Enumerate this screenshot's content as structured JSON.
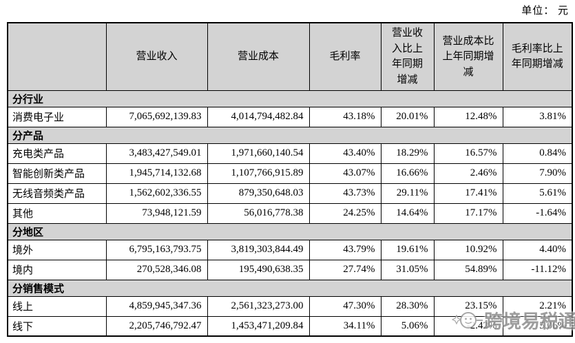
{
  "unit_label": "单位： 元",
  "table": {
    "columns": [
      "",
      "营业收入",
      "营业成本",
      "毛利率",
      "营业收入比上年同期增减",
      "营业成本比上年同期增减",
      "毛利率比上年同期增减"
    ],
    "rows": [
      {
        "type": "section",
        "label": "分行业"
      },
      {
        "type": "data",
        "label": "消费电子业",
        "revenue": "7,065,692,139.83",
        "cost": "4,014,794,482.84",
        "margin": "43.18%",
        "revenue_yoy": "20.01%",
        "cost_yoy": "12.48%",
        "margin_yoy": "3.81%"
      },
      {
        "type": "section",
        "label": "分产品"
      },
      {
        "type": "data",
        "label": "充电类产品",
        "revenue": "3,483,427,549.01",
        "cost": "1,971,660,140.54",
        "margin": "43.40%",
        "revenue_yoy": "18.29%",
        "cost_yoy": "16.57%",
        "margin_yoy": "0.84%"
      },
      {
        "type": "data",
        "label": "智能创新类产品",
        "revenue": "1,945,714,132.68",
        "cost": "1,107,766,915.89",
        "margin": "43.07%",
        "revenue_yoy": "16.66%",
        "cost_yoy": "2.46%",
        "margin_yoy": "7.90%"
      },
      {
        "type": "data",
        "label": "无线音频类产品",
        "revenue": "1,562,602,336.55",
        "cost": "879,350,648.03",
        "margin": "43.73%",
        "revenue_yoy": "29.11%",
        "cost_yoy": "17.41%",
        "margin_yoy": "5.61%"
      },
      {
        "type": "data",
        "label": "其他",
        "revenue": "73,948,121.59",
        "cost": "56,016,778.38",
        "margin": "24.25%",
        "revenue_yoy": "14.64%",
        "cost_yoy": "17.17%",
        "margin_yoy": "-1.64%"
      },
      {
        "type": "section",
        "label": "分地区"
      },
      {
        "type": "data",
        "label": "境外",
        "revenue": "6,795,163,793.75",
        "cost": "3,819,303,844.49",
        "margin": "43.79%",
        "revenue_yoy": "19.61%",
        "cost_yoy": "10.92%",
        "margin_yoy": "4.40%"
      },
      {
        "type": "data",
        "label": "境内",
        "revenue": "270,528,346.08",
        "cost": "195,490,638.35",
        "margin": "27.74%",
        "revenue_yoy": "31.05%",
        "cost_yoy": "54.89%",
        "margin_yoy": "-11.12%"
      },
      {
        "type": "section",
        "label": "分销售模式"
      },
      {
        "type": "data",
        "label": "线上",
        "revenue": "4,859,945,347.36",
        "cost": "2,561,323,273.00",
        "margin": "47.30%",
        "revenue_yoy": "28.30%",
        "cost_yoy": "23.15%",
        "margin_yoy": "2.21%"
      },
      {
        "type": "data",
        "label": "线下",
        "revenue": "2,205,746,792.47",
        "cost": "1,453,471,209.84",
        "margin": "34.11%",
        "revenue_yoy": "5.06%",
        "cost_yoy": "-2.42%",
        "margin_yoy": "5.06%"
      }
    ]
  },
  "watermark": {
    "text": "跨境易税通"
  },
  "colors": {
    "header_bg": "#d3d3d3",
    "border": "#000000",
    "watermark": "#8c8c8c"
  }
}
